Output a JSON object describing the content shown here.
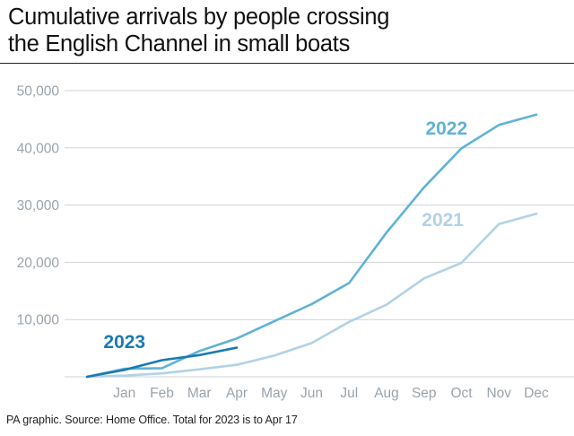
{
  "header": {
    "title_line1": "Cumulative arrivals by people crossing",
    "title_line2": "the English Channel in small boats"
  },
  "footer": {
    "source": "PA graphic. Source: Home Office. Total for 2023 is to Apr 17"
  },
  "colors": {
    "grid": "#cfd3d6",
    "axis_text": "#9aa3aa",
    "series_2021": "#b2d2e6",
    "series_2022": "#5fb2d6",
    "series_2023": "#1b7ab3"
  },
  "chart_data": {
    "type": "line",
    "title": "Cumulative arrivals by people crossing the English Channel in small boats",
    "xlabel": "",
    "ylabel": "",
    "categories": [
      "Jan",
      "Feb",
      "Mar",
      "Apr",
      "May",
      "Jun",
      "Jul",
      "Aug",
      "Sep",
      "Oct",
      "Nov",
      "Dec"
    ],
    "y_ticks": [
      "10,000",
      "20,000",
      "30,000",
      "40,000",
      "50,000"
    ],
    "y_tick_values": [
      10000,
      20000,
      30000,
      40000,
      50000
    ],
    "ylim": [
      0,
      50000
    ],
    "grid": true,
    "series": [
      {
        "name": "2021",
        "x": [
          0,
          1,
          2,
          3,
          4,
          5,
          6,
          7,
          8,
          9,
          10,
          11,
          12
        ],
        "values": [
          0,
          200,
          600,
          1300,
          2100,
          3700,
          5900,
          9600,
          12600,
          17200,
          19900,
          26700,
          28500
        ]
      },
      {
        "name": "2022",
        "x": [
          0,
          1,
          2,
          3,
          4,
          5,
          6,
          7,
          8,
          9,
          10,
          11,
          12
        ],
        "values": [
          0,
          1400,
          1500,
          4500,
          6700,
          9700,
          12700,
          16400,
          25200,
          33100,
          39900,
          44000,
          45800
        ]
      },
      {
        "name": "2023",
        "x": [
          0,
          1,
          2,
          3,
          4
        ],
        "values": [
          0,
          1200,
          2900,
          3800,
          5100
        ]
      }
    ]
  }
}
